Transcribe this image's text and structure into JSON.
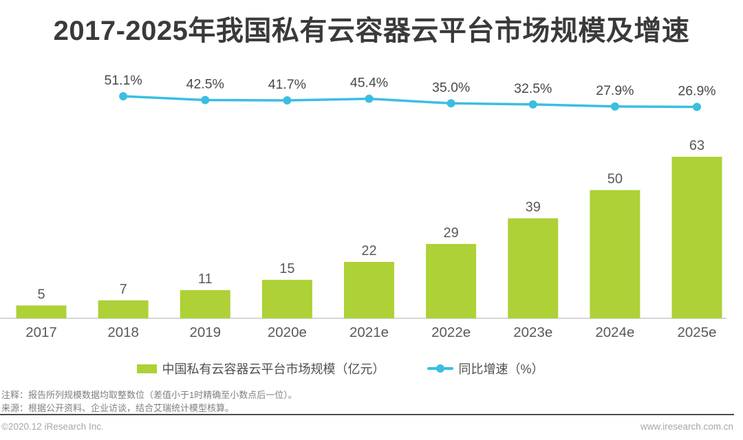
{
  "title": "2017-2025年我国私有云容器云平台市场规模及增速",
  "chart_data": {
    "type": "bar+line",
    "categories": [
      "2017",
      "2018",
      "2019",
      "2020e",
      "2021e",
      "2022e",
      "2023e",
      "2024e",
      "2025e"
    ],
    "series": [
      {
        "name": "中国私有云容器云平台市场规模（亿元）",
        "type": "bar",
        "values": [
          5,
          7,
          11,
          15,
          22,
          29,
          39,
          50,
          63
        ],
        "color": "#ADD137"
      },
      {
        "name": "同比增速（%）",
        "type": "line",
        "values": [
          null,
          51.1,
          42.5,
          41.7,
          45.4,
          35.0,
          32.5,
          27.9,
          26.9
        ],
        "color": "#3BBEE2"
      }
    ],
    "value_labels_shown": true,
    "grid": "off",
    "legend_position": "bottom",
    "xlabel": "",
    "ylabel": ""
  },
  "legend": {
    "bar_label": "中国私有云容器云平台市场规模（亿元）",
    "line_label": "同比增速（%）"
  },
  "notes": {
    "note1": "注释：报告所列规模数据均取整数位（差值小于1时精确至小数点后一位）。",
    "note2": "来源：根据公开资料、企业访谈，结合艾瑞统计模型核算。"
  },
  "footer": {
    "copyright": "©2020.12 iResearch Inc.",
    "website": "www.iresearch.com.cn"
  },
  "colors": {
    "bar": "#ADD137",
    "line": "#3BBEE2",
    "axis": "#c9c9c9",
    "bar_value_label": "#595959",
    "axis_label": "#595959",
    "pct_label": "#484848"
  }
}
